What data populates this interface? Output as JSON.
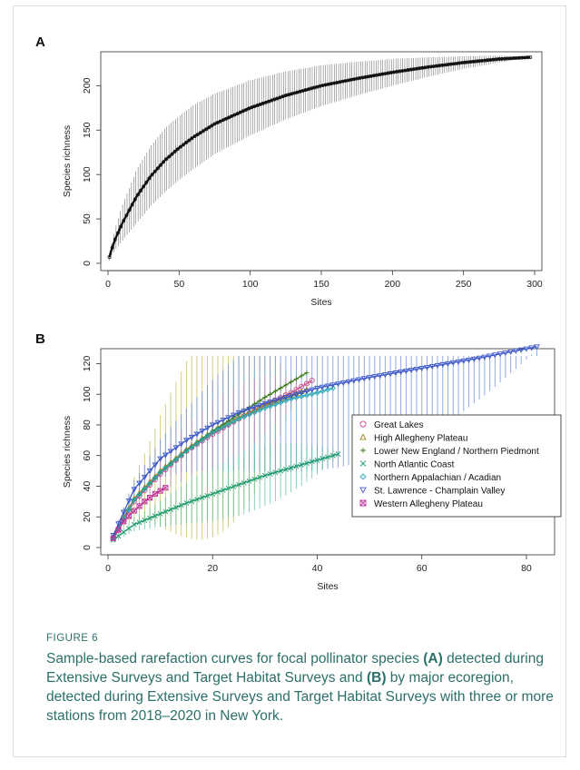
{
  "figure": {
    "label": "FIGURE 6",
    "caption_parts": [
      {
        "text": "Sample-based rarefaction curves for focal pollinator species ",
        "bold": false
      },
      {
        "text": "(A)",
        "bold": true
      },
      {
        "text": " detected during Extensive Surveys and Target Habitat Surveys and ",
        "bold": false
      },
      {
        "text": "(B)",
        "bold": true
      },
      {
        "text": " by major ecoregion, detected during Extensive Surveys and Target Habitat Surveys with three or more stations from 2018–2020 in New York.",
        "bold": false
      }
    ]
  },
  "chart_data": [
    {
      "panel": "A",
      "type": "line",
      "xlabel": "Sites",
      "ylabel": "Species richness",
      "xlim": [
        0,
        300
      ],
      "ylim": [
        0,
        230
      ],
      "xticks": [
        0,
        50,
        100,
        150,
        200,
        250,
        300
      ],
      "yticks": [
        0,
        50,
        100,
        150,
        200
      ],
      "grid": false,
      "series": [
        {
          "x": [
            1,
            2,
            5,
            10,
            20,
            30,
            40,
            50,
            60,
            75,
            100,
            125,
            150,
            175,
            200,
            225,
            250,
            275,
            297
          ],
          "y": [
            7,
            13,
            27,
            45,
            75,
            98,
            116,
            130,
            142,
            157,
            175,
            189,
            200,
            208,
            215,
            221,
            226,
            230,
            232
          ],
          "ci_halfwidth": [
            4,
            6,
            12,
            20,
            30,
            34,
            36,
            36,
            36,
            34,
            31,
            27,
            23,
            19,
            15,
            11,
            7,
            4,
            0
          ],
          "color": "#111111"
        }
      ]
    },
    {
      "panel": "B",
      "type": "line",
      "xlabel": "Sites",
      "ylabel": "Species richness",
      "xlim": [
        0,
        84
      ],
      "ylim": [
        0,
        125
      ],
      "xticks": [
        0,
        20,
        40,
        60,
        80
      ],
      "yticks": [
        0,
        20,
        40,
        60,
        80,
        100,
        120
      ],
      "grid": false,
      "legend_position": "right-middle",
      "series": [
        {
          "name": "Great Lakes",
          "marker": "circle",
          "color": "#d04a8a",
          "x": [
            1,
            5,
            10,
            15,
            20,
            25,
            30,
            35,
            39
          ],
          "y": [
            6,
            30,
            48,
            63,
            74,
            84,
            93,
            101,
            109
          ]
        },
        {
          "name": "High Allegheny Plateau",
          "marker": "triangle-up",
          "color": "#a0801e",
          "x": [
            1,
            5,
            10,
            15,
            20,
            25,
            30,
            35,
            38
          ],
          "y": [
            7,
            32,
            50,
            64,
            76,
            85,
            93,
            99,
            103
          ]
        },
        {
          "name": "Lower New England / Northern Piedmont",
          "marker": "plus",
          "color": "#3d7a1c",
          "x": [
            1,
            5,
            10,
            15,
            20,
            25,
            30,
            35,
            38
          ],
          "y": [
            7,
            31,
            49,
            63,
            76,
            87,
            98,
            108,
            114
          ]
        },
        {
          "name": "North Atlantic Coast",
          "marker": "cross",
          "color": "#1f9a6e",
          "x": [
            1,
            5,
            10,
            15,
            20,
            25,
            30,
            35,
            40,
            44
          ],
          "y": [
            5,
            15,
            22,
            29,
            35,
            41,
            47,
            52,
            57,
            61
          ]
        },
        {
          "name": "Northern Appalachian / Acadian",
          "marker": "diamond",
          "color": "#2aaab8",
          "x": [
            1,
            5,
            10,
            15,
            20,
            25,
            30,
            35,
            40,
            43
          ],
          "y": [
            6,
            31,
            49,
            63,
            75,
            84,
            91,
            97,
            101,
            104
          ]
        },
        {
          "name": "St. Lawrence - Champlain Valley",
          "marker": "triangle-down",
          "color": "#3b57c8",
          "x": [
            1,
            5,
            10,
            15,
            20,
            25,
            30,
            35,
            40,
            50,
            60,
            70,
            82
          ],
          "y": [
            8,
            38,
            58,
            70,
            80,
            88,
            94,
            99,
            104,
            111,
            117,
            123,
            131
          ]
        },
        {
          "name": "Western Allegheny Plateau",
          "marker": "square-x",
          "color": "#c0329b",
          "x": [
            1,
            3,
            5,
            7,
            9,
            11
          ],
          "y": [
            6,
            17,
            24,
            30,
            35,
            39
          ]
        }
      ]
    }
  ]
}
